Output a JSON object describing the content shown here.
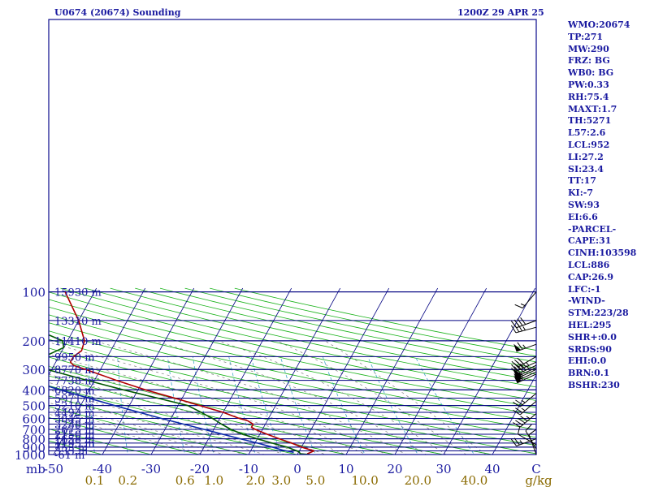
{
  "header": {
    "title": "U0674 (20674) Sounding",
    "valid_time": "1200Z 29 APR 25"
  },
  "indices": [
    "WMO:20674",
    "TP:271",
    "MW:290",
    "FRZ: BG",
    "WB0: BG",
    "PW:0.33",
    "RH:75.4",
    "MAXT:1.7",
    "TH:5271",
    "L57:2.6",
    "LCL:952",
    "LI:27.2",
    "SI:23.4",
    "TT:17",
    "KI:-7",
    "SW:93",
    "EI:6.6",
    "-PARCEL-",
    "CAPE:31",
    "CINH:103598",
    "LCL:886",
    "CAP:26.9",
    "LFC:-1",
    "-WIND-",
    "STM:223/28",
    "HEL:295",
    "SHR+:0.0",
    "SRDS:90",
    "EHI:0.0",
    "BRN:0.1",
    "BSHR:230"
  ],
  "colors": {
    "frame": "#0a0a8c",
    "isobar": "#000080",
    "isotherm": "#000080",
    "dry_adiabat": "#19b219",
    "moist_adiabat": "#7a7a7a",
    "mixing_ratio": "#3fa9c9",
    "temperature": "#b00000",
    "dewpoint": "#005a00",
    "parcel": "#0a2aa8",
    "barb": "#000000",
    "label": "#1a1aa0",
    "mixing_label": "#8a6a00"
  },
  "chart_data": {
    "type": "skew-t log-p sounding",
    "y_axis": {
      "label": "mb",
      "scale": "log",
      "range": [
        1000,
        100
      ],
      "ticks": [
        "100",
        "200",
        "300",
        "400",
        "500",
        "600",
        "700",
        "800",
        "900",
        "1000"
      ]
    },
    "x_axis": {
      "label": "C",
      "range": [
        -50,
        50
      ],
      "ticks": [
        "-50",
        "-40",
        "-30",
        "-20",
        "-10",
        "0",
        "10",
        "20",
        "30",
        "40"
      ]
    },
    "mixing_ratio_axis": {
      "label": "g/kg",
      "ticks": [
        "0.1",
        "0.2",
        "0.6",
        "1.0",
        "2.0",
        "3.0",
        "5.0",
        "10.0",
        "20.0",
        "40.0"
      ]
    },
    "height_levels": [
      {
        "label": "15930 m",
        "p": 100
      },
      {
        "label": "13310 m",
        "p": 150
      },
      {
        "label": "11410 m",
        "p": 200
      },
      {
        "label": "9950 m",
        "p": 250
      },
      {
        "label": "8770 m",
        "p": 300
      },
      {
        "label": "7738 m",
        "p": 350
      },
      {
        "label": "6820 m",
        "p": 400
      },
      {
        "label": "5971 m",
        "p": 450
      },
      {
        "label": "5210 m",
        "p": 500
      },
      {
        "label": "4493 m",
        "p": 550
      },
      {
        "label": "3845 m",
        "p": 600
      },
      {
        "label": "3238 m",
        "p": 650
      },
      {
        "label": "2675 m",
        "p": 700
      },
      {
        "label": "2150 m",
        "p": 750
      },
      {
        "label": "1658 m",
        "p": 800
      },
      {
        "label": "1195 m",
        "p": 850
      },
      {
        "label": "753 m",
        "p": 900
      },
      {
        "label": "335 m",
        "p": 950
      },
      {
        "label": "-61 m",
        "p": 1000
      }
    ],
    "temperature": [
      {
        "p": 1000,
        "t": 2.5
      },
      {
        "p": 987,
        "t": 2.0
      },
      {
        "p": 970,
        "t": 2.5
      },
      {
        "p": 950,
        "t": 3.0
      },
      {
        "p": 925,
        "t": 1.5
      },
      {
        "p": 900,
        "t": 0.0
      },
      {
        "p": 850,
        "t": -2.5
      },
      {
        "p": 800,
        "t": -5.5
      },
      {
        "p": 750,
        "t": -8.5
      },
      {
        "p": 700,
        "t": -11.5
      },
      {
        "p": 680,
        "t": -12.5
      },
      {
        "p": 650,
        "t": -12.5
      },
      {
        "p": 620,
        "t": -14.0
      },
      {
        "p": 600,
        "t": -16.0
      },
      {
        "p": 575,
        "t": -18.0
      },
      {
        "p": 550,
        "t": -20.0
      },
      {
        "p": 500,
        "t": -25.5
      },
      {
        "p": 450,
        "t": -31.5
      },
      {
        "p": 400,
        "t": -38.5
      },
      {
        "p": 350,
        "t": -45.5
      },
      {
        "p": 300,
        "t": -53.0
      },
      {
        "p": 283,
        "t": -56.0
      },
      {
        "p": 270,
        "t": -57.0
      },
      {
        "p": 250,
        "t": -57.0
      },
      {
        "p": 230,
        "t": -56.0
      },
      {
        "p": 200,
        "t": -56.5
      },
      {
        "p": 150,
        "t": -60.0
      },
      {
        "p": 100,
        "t": -66.0
      }
    ],
    "dewpoint": [
      {
        "p": 1000,
        "t": 2.5
      },
      {
        "p": 990,
        "t": 0.5
      },
      {
        "p": 960,
        "t": 0.0
      },
      {
        "p": 950,
        "t": -0.5
      },
      {
        "p": 900,
        "t": -3.0
      },
      {
        "p": 850,
        "t": -6.5
      },
      {
        "p": 800,
        "t": -10.0
      },
      {
        "p": 750,
        "t": -13.5
      },
      {
        "p": 700,
        "t": -16.5
      },
      {
        "p": 650,
        "t": -19.0
      },
      {
        "p": 600,
        "t": -21.5
      },
      {
        "p": 575,
        "t": -23.0
      },
      {
        "p": 550,
        "t": -24.5
      },
      {
        "p": 500,
        "t": -28.0
      },
      {
        "p": 450,
        "t": -35.0
      },
      {
        "p": 400,
        "t": -43.0
      },
      {
        "p": 350,
        "t": -51.5
      },
      {
        "p": 300,
        "t": -61.0
      },
      {
        "p": 275,
        "t": -65.0
      },
      {
        "p": 270,
        "t": -64.0
      },
      {
        "p": 250,
        "t": -63.0
      },
      {
        "p": 220,
        "t": -60.0
      },
      {
        "p": 200,
        "t": -61.0
      },
      {
        "p": 150,
        "t": -73.0
      },
      {
        "p": 120,
        "t": -79.0
      },
      {
        "p": 100,
        "t": -84.0
      }
    ],
    "parcel": [
      {
        "p": 970,
        "t": -1.0
      },
      {
        "p": 940,
        "t": -3.5
      },
      {
        "p": 900,
        "t": -6.0
      },
      {
        "p": 850,
        "t": -9.5
      },
      {
        "p": 800,
        "t": -13.5
      },
      {
        "p": 700,
        "t": -22.0
      },
      {
        "p": 600,
        "t": -32.0
      },
      {
        "p": 500,
        "t": -43.0
      },
      {
        "p": 400,
        "t": -56.0
      },
      {
        "p": 300,
        "t": -72.0
      },
      {
        "p": 250,
        "t": -81.0
      },
      {
        "p": 200,
        "t": -91.0
      },
      {
        "p": 150,
        "t": -103.0
      },
      {
        "p": 100,
        "t": -119.0
      }
    ],
    "wind_barbs": [
      {
        "p": 100,
        "dir": 220,
        "spd": 15
      },
      {
        "p": 150,
        "dir": 250,
        "spd": 40
      },
      {
        "p": 165,
        "dir": 255,
        "spd": 35
      },
      {
        "p": 210,
        "dir": 250,
        "spd": 65
      },
      {
        "p": 250,
        "dir": 240,
        "spd": 30
      },
      {
        "p": 270,
        "dir": 245,
        "spd": 45
      },
      {
        "p": 283,
        "dir": 245,
        "spd": 45
      },
      {
        "p": 292,
        "dir": 245,
        "spd": 50
      },
      {
        "p": 300,
        "dir": 245,
        "spd": 55
      },
      {
        "p": 310,
        "dir": 245,
        "spd": 55
      },
      {
        "p": 320,
        "dir": 245,
        "spd": 55
      },
      {
        "p": 420,
        "dir": 230,
        "spd": 25
      },
      {
        "p": 470,
        "dir": 230,
        "spd": 25
      },
      {
        "p": 560,
        "dir": 230,
        "spd": 45
      },
      {
        "p": 800,
        "dir": 250,
        "spd": 25
      },
      {
        "p": 870,
        "dir": 300,
        "spd": 10
      },
      {
        "p": 925,
        "dir": 330,
        "spd": 10
      },
      {
        "p": 1000,
        "dir": 340,
        "spd": 10
      }
    ]
  }
}
